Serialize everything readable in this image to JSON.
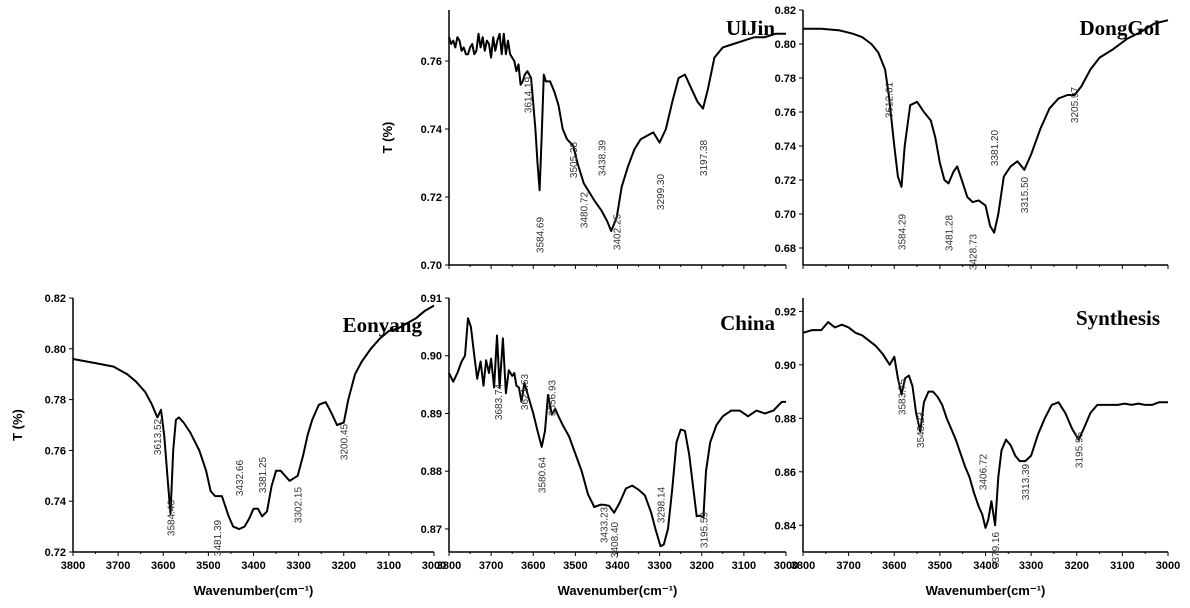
{
  "chart_data": [
    {
      "type": "line",
      "title": "UlJin",
      "ylabel": "T (%)",
      "xlabel": "",
      "xlim": [
        3800,
        3000
      ],
      "ylim": [
        0.7,
        0.775
      ],
      "x_ticks": [],
      "y_ticks": [
        "0.70",
        "0.72",
        "0.74",
        "0.76"
      ],
      "series": [
        {
          "x": [
            3800,
            3795,
            3790,
            3785,
            3780,
            3775,
            3770,
            3765,
            3760,
            3755,
            3750,
            3745,
            3740,
            3735,
            3730,
            3725,
            3720,
            3715,
            3710,
            3705,
            3700,
            3695,
            3690,
            3685,
            3680,
            3675,
            3670,
            3665,
            3660,
            3655,
            3650,
            3645,
            3640,
            3635,
            3630,
            3625,
            3620,
            3614,
            3605,
            3595,
            3590,
            3585,
            3580,
            3575,
            3570,
            3560,
            3550,
            3540,
            3530,
            3520,
            3505,
            3495,
            3480,
            3470,
            3455,
            3438,
            3425,
            3415,
            3402,
            3390,
            3375,
            3360,
            3345,
            3330,
            3315,
            3300,
            3285,
            3270,
            3255,
            3240,
            3225,
            3210,
            3197,
            3185,
            3170,
            3150,
            3125,
            3100,
            3075,
            3050,
            3025,
            3000
          ],
          "values": [
            0.767,
            0.765,
            0.766,
            0.764,
            0.767,
            0.766,
            0.763,
            0.764,
            0.762,
            0.762,
            0.764,
            0.765,
            0.762,
            0.763,
            0.768,
            0.764,
            0.767,
            0.763,
            0.766,
            0.765,
            0.761,
            0.767,
            0.763,
            0.766,
            0.768,
            0.762,
            0.768,
            0.762,
            0.766,
            0.762,
            0.761,
            0.76,
            0.757,
            0.759,
            0.753,
            0.754,
            0.756,
            0.757,
            0.755,
            0.74,
            0.73,
            0.722,
            0.738,
            0.756,
            0.754,
            0.754,
            0.751,
            0.747,
            0.74,
            0.737,
            0.735,
            0.73,
            0.724,
            0.722,
            0.719,
            0.716,
            0.713,
            0.71,
            0.714,
            0.723,
            0.729,
            0.734,
            0.737,
            0.738,
            0.739,
            0.736,
            0.74,
            0.748,
            0.755,
            0.756,
            0.752,
            0.748,
            0.746,
            0.752,
            0.761,
            0.764,
            0.765,
            0.766,
            0.767,
            0.767,
            0.768,
            0.768
          ]
        }
      ],
      "annotations": [
        "3614.19",
        "3584.69",
        "3505.38",
        "3480.72",
        "3438.39",
        "3402.25",
        "3299.30",
        "3197.38"
      ]
    },
    {
      "type": "line",
      "title": "DongGol",
      "ylabel": "",
      "xlabel": "",
      "xlim": [
        3800,
        3000
      ],
      "ylim": [
        0.67,
        0.82
      ],
      "x_ticks": [],
      "y_ticks": [
        "0.68",
        "0.70",
        "0.72",
        "0.74",
        "0.76",
        "0.78",
        "0.80",
        "0.82"
      ],
      "series": [
        {
          "x": [
            3800,
            3760,
            3720,
            3690,
            3670,
            3650,
            3635,
            3620,
            3612,
            3600,
            3592,
            3584,
            3577,
            3565,
            3550,
            3535,
            3520,
            3510,
            3500,
            3490,
            3481,
            3470,
            3462,
            3452,
            3440,
            3428,
            3415,
            3400,
            3390,
            3381,
            3372,
            3360,
            3345,
            3330,
            3315,
            3300,
            3280,
            3260,
            3240,
            3220,
            3205,
            3190,
            3170,
            3150,
            3120,
            3090,
            3060,
            3030,
            3000
          ],
          "values": [
            0.809,
            0.809,
            0.808,
            0.806,
            0.804,
            0.8,
            0.795,
            0.785,
            0.77,
            0.74,
            0.722,
            0.716,
            0.74,
            0.764,
            0.766,
            0.76,
            0.755,
            0.745,
            0.73,
            0.72,
            0.718,
            0.725,
            0.728,
            0.72,
            0.71,
            0.707,
            0.708,
            0.705,
            0.693,
            0.689,
            0.7,
            0.722,
            0.728,
            0.731,
            0.726,
            0.735,
            0.75,
            0.762,
            0.768,
            0.77,
            0.77,
            0.775,
            0.785,
            0.792,
            0.797,
            0.803,
            0.807,
            0.812,
            0.814
          ]
        }
      ],
      "annotations": [
        "3612.61",
        "3584.29",
        "3481.28",
        "3428.73",
        "3381.20",
        "3315.50",
        "3205.97"
      ]
    },
    {
      "type": "line",
      "title": "Eonyang",
      "ylabel": "T (%)",
      "xlabel": "Wavenumber(cm⁻¹)",
      "xlim": [
        3800,
        3000
      ],
      "ylim": [
        0.72,
        0.82
      ],
      "x_ticks": [
        "3800",
        "3700",
        "3600",
        "3500",
        "3400",
        "3300",
        "3200",
        "3100",
        "3000"
      ],
      "y_ticks": [
        "0.72",
        "0.74",
        "0.76",
        "0.78",
        "0.80",
        "0.82"
      ],
      "series": [
        {
          "x": [
            3800,
            3770,
            3740,
            3710,
            3680,
            3660,
            3640,
            3625,
            3618,
            3613,
            3605,
            3598,
            3590,
            3584,
            3578,
            3572,
            3565,
            3555,
            3540,
            3520,
            3505,
            3495,
            3485,
            3470,
            3455,
            3445,
            3432,
            3420,
            3410,
            3400,
            3390,
            3381,
            3370,
            3360,
            3350,
            3340,
            3330,
            3320,
            3302,
            3290,
            3280,
            3270,
            3255,
            3240,
            3228,
            3215,
            3200,
            3190,
            3175,
            3160,
            3140,
            3120,
            3100,
            3080,
            3060,
            3040,
            3020,
            3000
          ],
          "values": [
            0.796,
            0.795,
            0.794,
            0.793,
            0.79,
            0.787,
            0.783,
            0.778,
            0.775,
            0.773,
            0.776,
            0.766,
            0.748,
            0.735,
            0.76,
            0.772,
            0.773,
            0.771,
            0.767,
            0.76,
            0.752,
            0.744,
            0.742,
            0.742,
            0.734,
            0.73,
            0.729,
            0.73,
            0.733,
            0.737,
            0.737,
            0.734,
            0.736,
            0.746,
            0.752,
            0.752,
            0.75,
            0.748,
            0.75,
            0.758,
            0.766,
            0.772,
            0.778,
            0.779,
            0.775,
            0.77,
            0.771,
            0.78,
            0.79,
            0.795,
            0.8,
            0.804,
            0.807,
            0.808,
            0.81,
            0.812,
            0.815,
            0.817
          ]
        }
      ],
      "annotations": [
        "3613.52",
        "3584.46",
        "3481.39",
        "3432.66",
        "3381.25",
        "3302.15",
        "3200.45"
      ]
    },
    {
      "type": "line",
      "title": "China",
      "ylabel": "",
      "xlabel": "Wavenumber(cm⁻¹)",
      "xlim": [
        3800,
        3000
      ],
      "ylim": [
        0.866,
        0.91
      ],
      "x_ticks": [
        "3800",
        "3700",
        "3600",
        "3500",
        "3400",
        "3300",
        "3200",
        "3100",
        "3000"
      ],
      "y_ticks": [
        "0.87",
        "0.88",
        "0.89",
        "0.90",
        "0.91"
      ],
      "series": [
        {
          "x": [
            3800,
            3790,
            3780,
            3770,
            3762,
            3755,
            3748,
            3740,
            3733,
            3725,
            3718,
            3712,
            3705,
            3700,
            3693,
            3686,
            3680,
            3672,
            3665,
            3658,
            3650,
            3645,
            3640,
            3634,
            3628,
            3621,
            3612,
            3600,
            3590,
            3580,
            3572,
            3565,
            3556,
            3548,
            3540,
            3530,
            3515,
            3500,
            3485,
            3470,
            3455,
            3440,
            3433,
            3420,
            3408,
            3395,
            3380,
            3365,
            3350,
            3335,
            3320,
            3310,
            3298,
            3290,
            3280,
            3270,
            3260,
            3250,
            3240,
            3230,
            3220,
            3212,
            3205,
            3196,
            3190,
            3180,
            3165,
            3150,
            3130,
            3110,
            3090,
            3070,
            3050,
            3030,
            3010,
            3000
          ],
          "values": [
            0.897,
            0.8955,
            0.897,
            0.899,
            0.9,
            0.9065,
            0.905,
            0.9,
            0.896,
            0.899,
            0.8948,
            0.8992,
            0.897,
            0.8995,
            0.8945,
            0.9035,
            0.8945,
            0.903,
            0.8935,
            0.8975,
            0.8965,
            0.897,
            0.8948,
            0.8945,
            0.892,
            0.8953,
            0.893,
            0.89,
            0.887,
            0.8842,
            0.887,
            0.8932,
            0.8898,
            0.8908,
            0.8895,
            0.888,
            0.886,
            0.883,
            0.88,
            0.876,
            0.8738,
            0.8742,
            0.8742,
            0.874,
            0.8728,
            0.8745,
            0.877,
            0.8775,
            0.8768,
            0.8758,
            0.8728,
            0.87,
            0.867,
            0.8673,
            0.87,
            0.877,
            0.885,
            0.8872,
            0.887,
            0.883,
            0.877,
            0.8722,
            0.8723,
            0.872,
            0.88,
            0.885,
            0.888,
            0.8895,
            0.8905,
            0.8905,
            0.8895,
            0.8905,
            0.89,
            0.8905,
            0.892,
            0.892
          ]
        }
      ],
      "annotations": [
        "3683.74",
        "3621.63",
        "3556.93",
        "3580.64",
        "3433.23",
        "3408.40",
        "3298.14",
        "3195.59"
      ]
    },
    {
      "type": "line",
      "title": "Synthesis",
      "ylabel": "",
      "xlabel": "Wavenumber(cm⁻¹)",
      "xlim": [
        3800,
        3000
      ],
      "ylim": [
        0.83,
        0.925
      ],
      "x_ticks": [
        "3800",
        "3700",
        "3600",
        "3500",
        "3400",
        "3300",
        "3200",
        "3100",
        "3000"
      ],
      "y_ticks": [
        "0.84",
        "0.86",
        "0.88",
        "0.90",
        "0.92"
      ],
      "series": [
        {
          "x": [
            3800,
            3780,
            3760,
            3745,
            3730,
            3715,
            3700,
            3685,
            3670,
            3655,
            3640,
            3625,
            3610,
            3600,
            3592,
            3584,
            3576,
            3568,
            3560,
            3552,
            3543,
            3535,
            3525,
            3515,
            3505,
            3495,
            3485,
            3475,
            3465,
            3455,
            3445,
            3435,
            3425,
            3415,
            3407,
            3400,
            3394,
            3387,
            3379,
            3372,
            3365,
            3355,
            3345,
            3335,
            3325,
            3313,
            3300,
            3285,
            3270,
            3255,
            3240,
            3225,
            3210,
            3196,
            3185,
            3170,
            3155,
            3140,
            3125,
            3110,
            3095,
            3080,
            3065,
            3050,
            3035,
            3020,
            3000
          ],
          "values": [
            0.912,
            0.913,
            0.913,
            0.916,
            0.914,
            0.915,
            0.914,
            0.912,
            0.911,
            0.909,
            0.907,
            0.904,
            0.9,
            0.903,
            0.895,
            0.889,
            0.895,
            0.896,
            0.892,
            0.882,
            0.875,
            0.886,
            0.89,
            0.89,
            0.888,
            0.885,
            0.88,
            0.876,
            0.872,
            0.867,
            0.862,
            0.858,
            0.852,
            0.847,
            0.844,
            0.839,
            0.842,
            0.849,
            0.84,
            0.858,
            0.868,
            0.872,
            0.87,
            0.866,
            0.864,
            0.864,
            0.866,
            0.874,
            0.88,
            0.885,
            0.886,
            0.882,
            0.876,
            0.872,
            0.876,
            0.882,
            0.885,
            0.885,
            0.885,
            0.885,
            0.8855,
            0.885,
            0.8855,
            0.885,
            0.885,
            0.886,
            0.886
          ]
        }
      ],
      "annotations": [
        "3583.75",
        "3543.23",
        "3406.72",
        "3379.16",
        "3313.39",
        "3195.95"
      ]
    }
  ]
}
